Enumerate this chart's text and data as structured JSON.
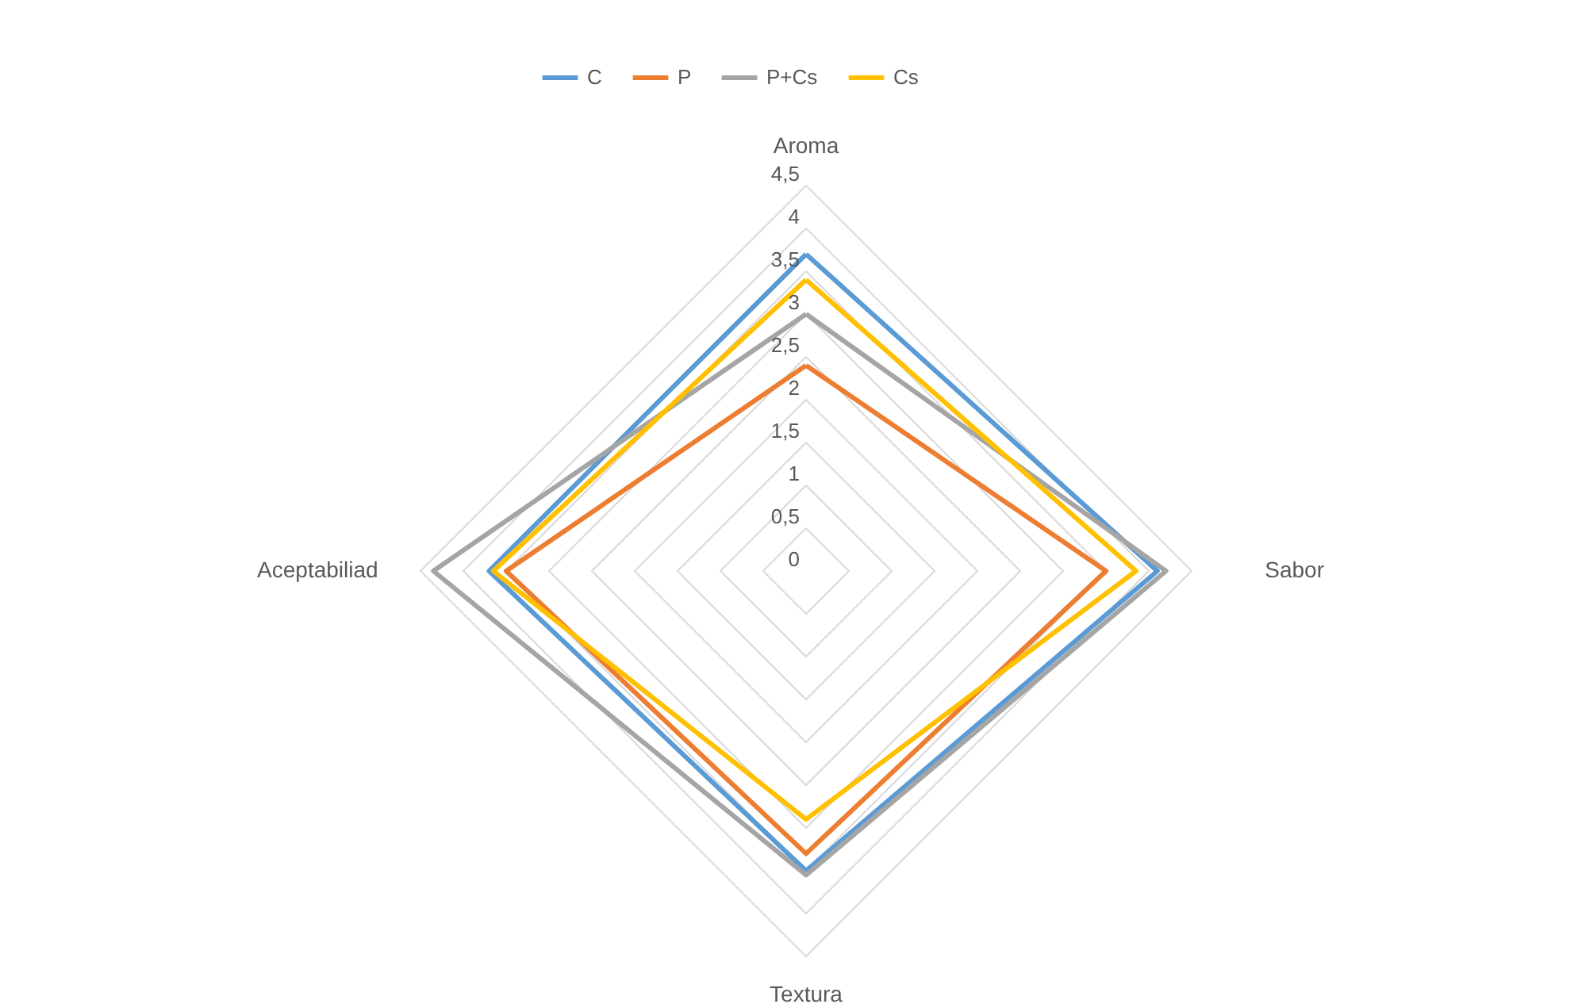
{
  "chart_data": {
    "type": "radar",
    "categories": [
      "Aroma",
      "Sabor",
      "Textura",
      "Aceptabiliad"
    ],
    "series": [
      {
        "name": "C",
        "color": "#5b9bd5",
        "values": [
          3.7,
          4.1,
          3.5,
          3.7
        ]
      },
      {
        "name": "P",
        "color": "#ed7d31",
        "values": [
          2.4,
          3.5,
          3.3,
          3.5
        ]
      },
      {
        "name": "P+Cs",
        "color": "#a5a5a5",
        "values": [
          3.0,
          4.2,
          3.55,
          4.35
        ]
      },
      {
        "name": "Cs",
        "color": "#ffc000",
        "values": [
          3.4,
          3.85,
          2.9,
          3.65
        ]
      }
    ],
    "ylim": [
      0,
      4.5
    ],
    "yticks": [
      {
        "value": 0,
        "label": "0"
      },
      {
        "value": 0.5,
        "label": "0,5"
      },
      {
        "value": 1,
        "label": "1"
      },
      {
        "value": 1.5,
        "label": "1,5"
      },
      {
        "value": 2,
        "label": "2"
      },
      {
        "value": 2.5,
        "label": "2,5"
      },
      {
        "value": 3,
        "label": "3"
      },
      {
        "value": 3.5,
        "label": "3,5"
      },
      {
        "value": 4,
        "label": "4"
      },
      {
        "value": 4.5,
        "label": "4,5"
      }
    ],
    "grid": true,
    "legend": "top"
  }
}
